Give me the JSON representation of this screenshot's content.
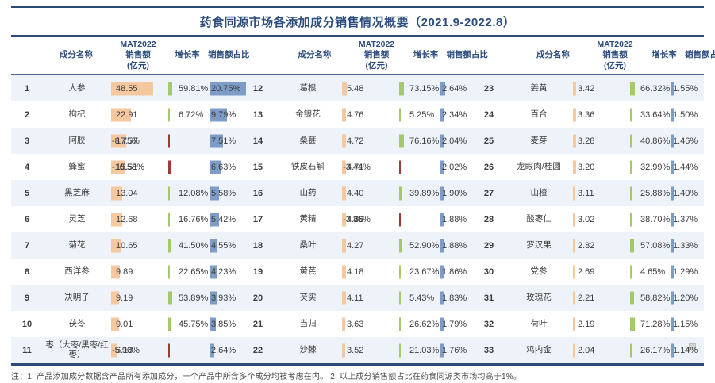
{
  "title": "药食同源市场各添加成分销售情况概要（2021.9-2022.8）",
  "note": "注：1. 产品添加成分数据含产品所有添加成分，一个产品中所含多个成分均被考虑在内。 2. 以上成分销售额占比在药食同源类市场均高于1%。",
  "columns_header": {
    "name": "成分名称",
    "sales_line1": "MAT2022",
    "sales_line2": "销售额",
    "sales_line3": "(亿元)",
    "growth": "增长率",
    "share": "销售额占比"
  },
  "colors": {
    "navy": "#2b4a78",
    "title_text": "#2c4d7e",
    "sales_bar": "#f5c8a0",
    "growth_bar_positive": "#a5c96a",
    "growth_bar_negative": "#a03a34",
    "share_bar": "#7d9cc8",
    "row_shade": "#eef2f9",
    "body_text": "#3d3d3d"
  },
  "chart_data": {
    "type": "table",
    "title": "药食同源市场各添加成分销售情况概要（2021.9-2022.8）",
    "columns": [
      "成分名称",
      "MAT2022销售额(亿元)",
      "增长率",
      "销售额占比"
    ],
    "layout": {
      "column_groups": 3,
      "rows_per_group": 11,
      "inline_bars": true
    },
    "rows": [
      {
        "no": 1,
        "name": "人参",
        "sales": 48.55,
        "growth_pct": 59.81,
        "share_pct": 20.75
      },
      {
        "no": 2,
        "name": "枸杞",
        "sales": 22.91,
        "growth_pct": 6.72,
        "share_pct": 9.79
      },
      {
        "no": 3,
        "name": "阿胶",
        "sales": 17.57,
        "growth_pct": -8.75,
        "share_pct": 7.51
      },
      {
        "no": 4,
        "name": "蜂蜜",
        "sales": 15.51,
        "growth_pct": -10.58,
        "share_pct": 6.63
      },
      {
        "no": 5,
        "name": "黑芝麻",
        "sales": 13.04,
        "growth_pct": 12.08,
        "share_pct": 5.58
      },
      {
        "no": 6,
        "name": "灵芝",
        "sales": 12.68,
        "growth_pct": 16.76,
        "share_pct": 5.42
      },
      {
        "no": 7,
        "name": "菊花",
        "sales": 10.65,
        "growth_pct": 41.5,
        "share_pct": 4.55
      },
      {
        "no": 8,
        "name": "西洋参",
        "sales": 9.89,
        "growth_pct": 22.65,
        "share_pct": 4.23
      },
      {
        "no": 9,
        "name": "决明子",
        "sales": 9.19,
        "growth_pct": 53.89,
        "share_pct": 3.93
      },
      {
        "no": 10,
        "name": "茯苓",
        "sales": 9.01,
        "growth_pct": 45.75,
        "share_pct": 3.85
      },
      {
        "no": 11,
        "name": "枣（大枣/黑枣/红枣）",
        "sales": 6.18,
        "growth_pct": -5.9,
        "share_pct": 2.64
      },
      {
        "no": 12,
        "name": "葛根",
        "sales": 5.48,
        "growth_pct": 73.15,
        "share_pct": 2.64
      },
      {
        "no": 13,
        "name": "金银花",
        "sales": 4.76,
        "growth_pct": 5.25,
        "share_pct": 2.34
      },
      {
        "no": 14,
        "name": "桑葚",
        "sales": 4.72,
        "growth_pct": 76.16,
        "share_pct": 2.04
      },
      {
        "no": 15,
        "name": "铁皮石斛",
        "sales": 4.71,
        "growth_pct": -3.44,
        "share_pct": 2.02
      },
      {
        "no": 16,
        "name": "山药",
        "sales": 4.4,
        "growth_pct": 39.89,
        "share_pct": 1.9
      },
      {
        "no": 17,
        "name": "黄精",
        "sales": 4.38,
        "growth_pct": -3.86,
        "share_pct": 1.88
      },
      {
        "no": 18,
        "name": "桑叶",
        "sales": 4.27,
        "growth_pct": 52.9,
        "share_pct": 1.88
      },
      {
        "no": 19,
        "name": "黄芪",
        "sales": 4.18,
        "growth_pct": 23.67,
        "share_pct": 1.86
      },
      {
        "no": 20,
        "name": "芡实",
        "sales": 4.11,
        "growth_pct": 5.43,
        "share_pct": 1.83
      },
      {
        "no": 21,
        "name": "当归",
        "sales": 3.63,
        "growth_pct": 26.62,
        "share_pct": 1.79
      },
      {
        "no": 22,
        "name": "沙棘",
        "sales": 3.52,
        "growth_pct": 21.03,
        "share_pct": 1.76
      },
      {
        "no": 23,
        "name": "姜黄",
        "sales": 3.42,
        "growth_pct": 66.32,
        "share_pct": 1.55
      },
      {
        "no": 24,
        "name": "百合",
        "sales": 3.36,
        "growth_pct": 33.64,
        "share_pct": 1.5
      },
      {
        "no": 25,
        "name": "麦芽",
        "sales": 3.28,
        "growth_pct": 40.86,
        "share_pct": 1.46
      },
      {
        "no": 26,
        "name": "龙眼肉/桂圆",
        "sales": 3.2,
        "growth_pct": 32.99,
        "share_pct": 1.44
      },
      {
        "no": 27,
        "name": "山楂",
        "sales": 3.11,
        "growth_pct": 25.88,
        "share_pct": 1.4
      },
      {
        "no": 28,
        "name": "酸枣仁",
        "sales": 3.02,
        "growth_pct": 38.7,
        "share_pct": 1.37
      },
      {
        "no": 29,
        "name": "罗汉果",
        "sales": 2.82,
        "growth_pct": 57.08,
        "share_pct": 1.33
      },
      {
        "no": 30,
        "name": "党参",
        "sales": 2.69,
        "growth_pct": 4.65,
        "share_pct": 1.29
      },
      {
        "no": 31,
        "name": "玫瑰花",
        "sales": 2.21,
        "growth_pct": 58.82,
        "share_pct": 1.2
      },
      {
        "no": 32,
        "name": "荷叶",
        "sales": 2.19,
        "growth_pct": 71.28,
        "share_pct": 1.15
      },
      {
        "no": 33,
        "name": "鸡内金",
        "sales": 2.04,
        "growth_pct": 26.17,
        "share_pct": 1.14
      }
    ]
  }
}
